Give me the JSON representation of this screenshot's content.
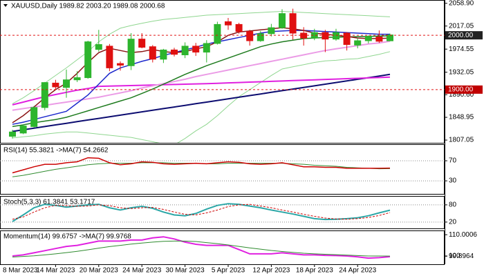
{
  "chart_data": [
    {
      "type": "candlestick",
      "title": "XAUUSD,Daily  1989.82 2003.20 1989.08 2000.68",
      "categories": [
        null,
        null,
        null,
        null,
        "14 Mar 2023",
        null,
        null,
        null,
        "20 Mar 2023",
        null,
        null,
        null,
        "24 Mar 2023",
        null,
        null,
        null,
        "30 Mar 2023",
        null,
        null,
        null,
        "5 Apr 2023",
        null,
        null,
        null,
        "12 Apr 2023",
        null,
        null,
        null,
        "18 Apr 2023",
        null,
        null,
        null,
        "24 Apr 2023",
        null,
        null,
        null
      ],
      "first_date": "8 Mar 2023",
      "open": [
        1814,
        1820,
        1832,
        1867,
        1912,
        1904,
        1918,
        1922,
        1974,
        1980,
        1948,
        1944,
        1993,
        1979,
        1956,
        1973,
        1964,
        1980,
        1969,
        1985,
        2025,
        2020,
        2007,
        1990,
        2003,
        2014,
        2040,
        2004,
        1995,
        2005,
        1993,
        2004,
        1982,
        1990,
        1997,
        1989.82
      ],
      "high": [
        1826,
        1836,
        1870,
        1914,
        1918,
        1937,
        1934,
        1990,
        2010,
        1984,
        1952,
        2004,
        2004,
        1982,
        1975,
        1977,
        1987,
        1986,
        1991,
        2025,
        2032,
        2023,
        2010,
        2008,
        2021,
        2048,
        2049,
        2015,
        2012,
        2010,
        2012,
        2006,
        1995,
        2000,
        2009,
        2003.2
      ],
      "low": [
        1810,
        1818,
        1830,
        1862,
        1900,
        1885,
        1914,
        1920,
        1970,
        1934,
        1935,
        1936,
        1976,
        1950,
        1949,
        1961,
        1958,
        1962,
        1950,
        1983,
        2010,
        2003,
        1981,
        1988,
        1998,
        2012,
        1992,
        1981,
        1991,
        1969,
        1990,
        1972,
        1976,
        1985,
        1986,
        1989.08
      ],
      "close": [
        1822,
        1833,
        1867,
        1913,
        1905,
        1918,
        1922,
        1988,
        1983,
        1940,
        1945,
        1993,
        1978,
        1956,
        1973,
        1965,
        1980,
        1969,
        1985,
        2020,
        2019,
        2007,
        1990,
        2003,
        2014,
        2040,
        2004,
        1995,
        2005,
        1993,
        2005,
        1983,
        1990,
        1998,
        1989,
        2000.68
      ],
      "up_color": "#2db52d",
      "down_color": "#e01010",
      "lines": [
        {
          "color": "#8fd68f",
          "width": 1,
          "values": [
            1874,
            1885,
            1898,
            1912,
            1926,
            1940,
            1955,
            1970,
            1988,
            2002,
            2013,
            2018,
            2022,
            2026,
            2029,
            2031,
            2033,
            2035,
            2037,
            2038,
            2039,
            2040,
            2041,
            2042,
            2043,
            2044,
            2043,
            2042,
            2041,
            2040,
            2039,
            2038,
            2037,
            2036,
            2035,
            2034
          ]
        },
        {
          "color": "#8fd68f",
          "width": 1,
          "values": [
            1811,
            1813,
            1815,
            1818,
            1820,
            1822,
            1822,
            1820,
            1818,
            1816,
            1814,
            1812,
            1808,
            1804,
            1800,
            1798,
            1810,
            1824,
            1836,
            1852,
            1870,
            1887,
            1900,
            1913,
            1926,
            1938,
            1942,
            1946,
            1950,
            1953,
            1954,
            1956,
            1957,
            1961,
            1965,
            1970
          ]
        },
        {
          "color": "#0c0c70",
          "width": 2,
          "values": [
            1823,
            1826,
            1829,
            1832,
            1835,
            1838,
            1841,
            1844,
            1847,
            1850,
            1853,
            1856,
            1859,
            1862,
            1865,
            1868,
            1871,
            1874,
            1877,
            1880,
            1883,
            1886,
            1889,
            1892,
            1895,
            1898,
            1901,
            1904,
            1907,
            1910,
            1913,
            1916,
            1919,
            1922,
            1925,
            1928
          ]
        },
        {
          "color": "#e020e0",
          "width": 2,
          "values": [
            1872,
            1877,
            1882,
            1887,
            1891,
            1895,
            1899,
            1902,
            1906,
            1906.5,
            1907,
            1907.5,
            1908,
            1908.5,
            1909,
            1909.5,
            1910,
            1910.5,
            1911,
            1911.7,
            1912.4,
            1913.1,
            1913.8,
            1914.5,
            1915.2,
            1915.9,
            1916.6,
            1917.3,
            1918,
            1918.7,
            1919.4,
            1920.1,
            1920.8,
            1921.5,
            1922.2,
            1923
          ]
        },
        {
          "color": "#eb9be6",
          "width": 2,
          "values": [
            1862,
            1865,
            1868,
            1871,
            1874,
            1877,
            1880,
            1883,
            1886,
            1890,
            1894,
            1898,
            1903,
            1907,
            1911,
            1915,
            1919,
            1924,
            1928,
            1932,
            1936,
            1940,
            1944,
            1948,
            1952,
            1956,
            1960,
            1964,
            1968,
            1972,
            1975,
            1978,
            1981,
            1984,
            1986,
            1989
          ]
        },
        {
          "color": "#1e7b1e",
          "width": 1.5,
          "values": [
            1832,
            1835,
            1839,
            1842,
            1845,
            1849,
            1855,
            1861,
            1867,
            1873,
            1879,
            1885,
            1893,
            1901,
            1910,
            1919,
            1928,
            1936,
            1944,
            1951,
            1958,
            1965,
            1972,
            1979,
            1984,
            1988,
            1991,
            1994,
            1995,
            1996,
            1996.5,
            1997,
            1997.5,
            1998,
            1998.5,
            1999
          ]
        },
        {
          "color": "#1c28cc",
          "width": 1.5,
          "values": [
            1836,
            1840,
            1845,
            1850,
            1855,
            1860,
            1875,
            1890,
            1910,
            1930,
            1940,
            1946,
            1952,
            1957,
            1963,
            1968,
            1973,
            1978,
            1984,
            1988,
            1992,
            1996,
            2000,
            2004,
            2007,
            2008,
            2009,
            2009,
            2008,
            2007,
            2006,
            2005,
            2004,
            2003,
            2002,
            2002
          ]
        },
        {
          "color": "#8b1414",
          "width": 1.5,
          "values": [
            1839,
            1852,
            1868,
            1885,
            1900,
            1912,
            1930,
            1950,
            1968,
            1976,
            1972,
            1968,
            1970,
            1974,
            1970,
            1968,
            1970,
            1975,
            1979,
            1988,
            2000,
            2006,
            2008,
            2010,
            2012,
            2014,
            2012,
            2009,
            2004,
            2002,
            2000,
            1998,
            1995,
            1994,
            1994,
            1995
          ]
        }
      ],
      "levels": [
        {
          "value": 2000,
          "label": "2000.00",
          "color": "#e01010",
          "box": "#222222"
        },
        {
          "value": 1900,
          "label": "1900.00",
          "color": "#e01010",
          "box": "#c00000"
        }
      ],
      "ylim": [
        1802,
        2065
      ],
      "yticks": [
        {
          "value": 2058.9,
          "label": "2058.90"
        },
        {
          "value": 2017.05,
          "label": "2017.05"
        },
        {
          "value": 1974.55,
          "label": "1974.55"
        },
        {
          "value": 1932.05,
          "label": "1932.05"
        },
        {
          "value": 1890.6,
          "label": "1890.60"
        },
        {
          "value": 1848.95,
          "label": "1848.95"
        },
        {
          "value": 1807.05,
          "label": "1807.05"
        }
      ]
    },
    {
      "type": "line",
      "title": "RSI(14) 55.3821  ->MA(7) 54.2662",
      "grid": "dotted",
      "series": [
        {
          "color": "#2e8b2e",
          "width": 1,
          "values": [
            38,
            41,
            45,
            49,
            53,
            56,
            59,
            62,
            64,
            65,
            65,
            65,
            66,
            66,
            66,
            65,
            65,
            65,
            64,
            64,
            65,
            65,
            65,
            65,
            65,
            65,
            64,
            63,
            61,
            60,
            59,
            57,
            56,
            55,
            54,
            54.2662
          ]
        },
        {
          "color": "#cc0000",
          "width": 1.5,
          "values": [
            46,
            52,
            58,
            63,
            63,
            66,
            68,
            76,
            75,
            66,
            62,
            64,
            68,
            67,
            64,
            63,
            64,
            65,
            64,
            66,
            68,
            67,
            64,
            63,
            64,
            66,
            62,
            58,
            58,
            57,
            57,
            55,
            55,
            55,
            55,
            55.3821
          ]
        }
      ],
      "ylim": [
        4,
        103
      ],
      "yticks": [
        70,
        30
      ]
    },
    {
      "type": "line",
      "title": "Stoch(5,3,3) 61.3841 53.1717",
      "grid": "dotted",
      "series": [
        {
          "color": "#2aa6a6",
          "width": 2,
          "values": [
            22,
            45,
            70,
            82,
            78,
            72,
            76,
            80,
            82,
            70,
            62,
            70,
            75,
            68,
            55,
            45,
            42,
            50,
            65,
            78,
            84,
            82,
            76,
            70,
            62,
            55,
            48,
            40,
            32,
            29,
            30,
            32,
            35,
            42,
            52,
            61.3841
          ]
        },
        {
          "color": "#cc0000",
          "width": 1,
          "dash": true,
          "values": [
            30,
            38,
            55,
            70,
            78,
            77,
            75,
            76,
            80,
            77,
            70,
            67,
            70,
            71,
            64,
            55,
            47,
            45,
            52,
            62,
            74,
            80,
            82,
            76,
            70,
            62,
            55,
            47,
            40,
            34,
            31,
            30,
            32,
            36,
            43,
            53.1717
          ]
        }
      ],
      "ylim": [
        -2,
        111
      ],
      "yticks": [
        80,
        20
      ]
    },
    {
      "type": "line",
      "title": "Momentum(14) 99.6757  ->MA(7) 99.9768",
      "series": [
        {
          "color": "#e020e0",
          "width": 2,
          "values": [
            100,
            100.5,
            101.5,
            102.5,
            103.5,
            104.5,
            105,
            106,
            107,
            107,
            107,
            107.5,
            107.5,
            108.5,
            109,
            108,
            106.5,
            105.5,
            105,
            105,
            105,
            103,
            101,
            101,
            101,
            101.5,
            101,
            100.5,
            100.5,
            100.3,
            100.2,
            100,
            99.6,
            99,
            99.2,
            99.6757
          ]
        },
        {
          "color": "#2e8b2e",
          "width": 1,
          "values": [
            99.5,
            99.8,
            100.1,
            100.5,
            101,
            101.6,
            102.2,
            102.9,
            103.7,
            104.4,
            105,
            105.6,
            106.1,
            106.5,
            106.9,
            107,
            107,
            106.8,
            106.3,
            105.8,
            105.2,
            104.5,
            103.8,
            103.2,
            102.6,
            102.1,
            101.7,
            101.3,
            101,
            100.8,
            100.6,
            100.4,
            100.2,
            100,
            100,
            99.9768
          ]
        }
      ],
      "ylim": [
        96.1,
        112
      ],
      "yticks": [
        {
          "value": 110.0006,
          "label": "110.0006"
        },
        100,
        {
          "value": 99.8964,
          "label": "99.8964"
        }
      ]
    }
  ]
}
